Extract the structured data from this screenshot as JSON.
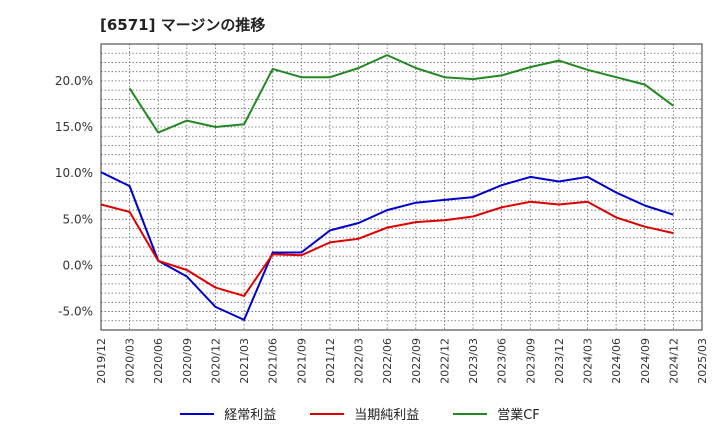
{
  "chart_data": {
    "type": "line",
    "title": "[6571]  マージンの推移",
    "x": [
      "2019/12",
      "2020/03",
      "2020/06",
      "2020/09",
      "2020/12",
      "2021/03",
      "2021/06",
      "2021/09",
      "2021/12",
      "2022/03",
      "2022/06",
      "2022/09",
      "2022/12",
      "2023/03",
      "2023/06",
      "2023/09",
      "2023/12",
      "2024/03",
      "2024/06",
      "2024/09",
      "2024/12",
      "2025/03"
    ],
    "ylim": [
      -7,
      24
    ],
    "yticks": [
      -5,
      0,
      5,
      10,
      15,
      20
    ],
    "ytick_labels": [
      "-5.0%",
      "0.0%",
      "5.0%",
      "10.0%",
      "15.0%",
      "20.0%"
    ],
    "grid": true,
    "legend_position": "bottom",
    "series": [
      {
        "name": "経常利益",
        "color": "#0000cc",
        "values": [
          10.1,
          8.6,
          0.5,
          -1.2,
          -4.5,
          -5.9,
          1.4,
          1.4,
          3.8,
          4.6,
          6.0,
          6.8,
          7.1,
          7.4,
          8.7,
          9.6,
          9.1,
          9.6,
          7.9,
          6.5,
          5.5,
          null
        ]
      },
      {
        "name": "当期純利益",
        "color": "#dd0000",
        "values": [
          6.6,
          5.8,
          0.5,
          -0.5,
          -2.4,
          -3.3,
          1.2,
          1.1,
          2.5,
          2.9,
          4.1,
          4.7,
          4.9,
          5.3,
          6.3,
          6.9,
          6.6,
          6.9,
          5.2,
          4.2,
          3.5,
          null
        ]
      },
      {
        "name": "営業CF",
        "color": "#228822",
        "values": [
          null,
          19.2,
          14.4,
          15.7,
          15.0,
          15.3,
          21.3,
          20.4,
          20.4,
          21.4,
          22.8,
          21.4,
          20.4,
          20.2,
          20.6,
          21.5,
          22.2,
          21.2,
          20.4,
          19.6,
          17.3,
          null
        ]
      }
    ]
  }
}
